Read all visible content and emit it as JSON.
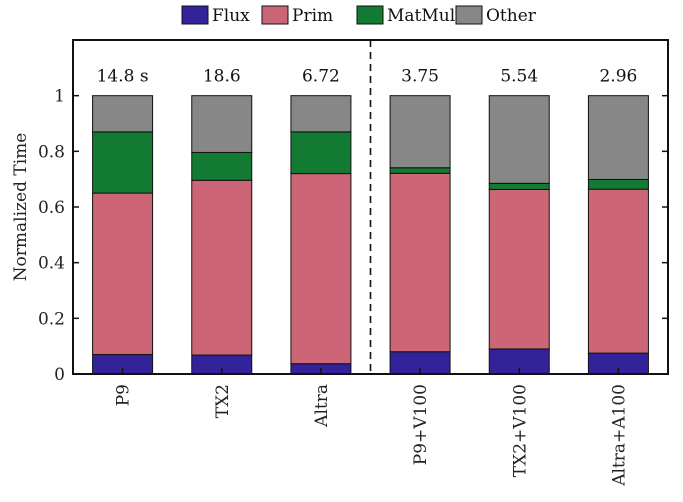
{
  "chart_data": {
    "type": "bar",
    "stacked": true,
    "ylabel": "Normalized Time",
    "xlabel": "",
    "ylim": [
      0,
      1.2
    ],
    "yticks": [
      "0",
      "0.2",
      "0.4",
      "0.6",
      "0.8",
      "1"
    ],
    "ytick_values": [
      0,
      0.2,
      0.4,
      0.6,
      0.8,
      1
    ],
    "categories": [
      "P9",
      "TX2",
      "Altra",
      "P9+V100",
      "TX2+V100",
      "Altra+A100"
    ],
    "annotations": [
      "14.8 s",
      "18.6",
      "6.72",
      "3.75",
      "5.54",
      "2.96"
    ],
    "separator_after_index": 2,
    "legend_position": "top",
    "grid": false,
    "series": [
      {
        "name": "Flux",
        "color": "#33239a",
        "values": [
          0.07,
          0.068,
          0.037,
          0.08,
          0.09,
          0.075
        ]
      },
      {
        "name": "Prim",
        "color": "#cc6677",
        "values": [
          0.58,
          0.628,
          0.683,
          0.641,
          0.573,
          0.589
        ]
      },
      {
        "name": "MatMul",
        "color": "#137a33",
        "values": [
          0.22,
          0.1,
          0.15,
          0.02,
          0.022,
          0.035
        ]
      },
      {
        "name": "Other",
        "color": "#878787",
        "values": [
          0.13,
          0.204,
          0.13,
          0.259,
          0.315,
          0.301
        ]
      }
    ]
  }
}
